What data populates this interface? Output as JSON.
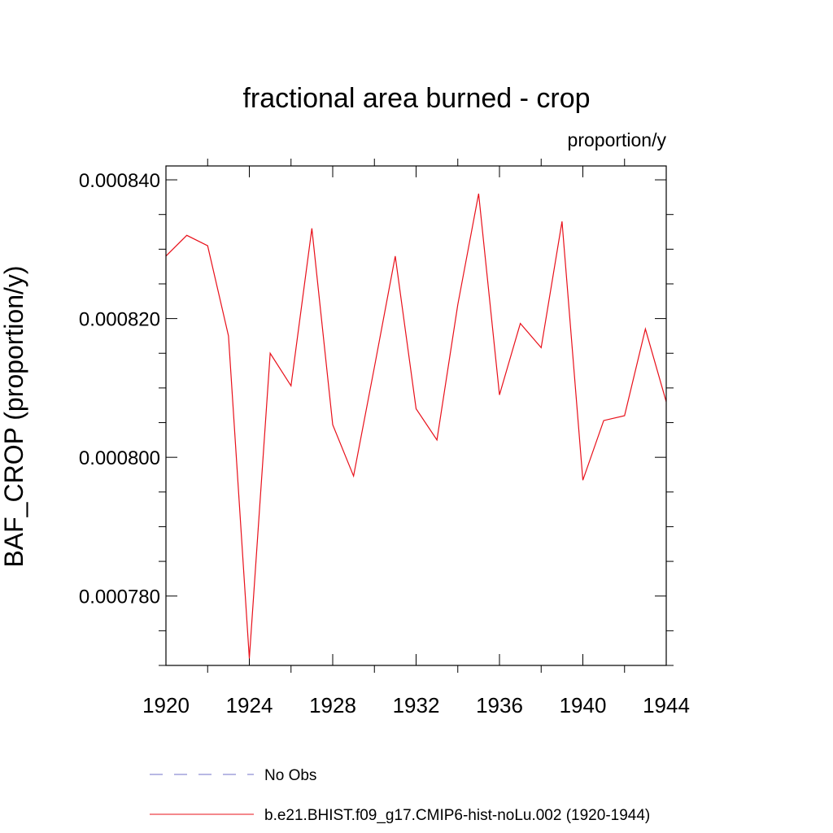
{
  "chart_data": {
    "type": "line",
    "title": "fractional area burned - crop",
    "units": "proportion/y",
    "xlabel": "",
    "ylabel": "BAF_CROP  (proportion/y)",
    "xlim": [
      1920,
      1944
    ],
    "ylim": [
      0.00077,
      0.000842
    ],
    "x_ticks": [
      1920,
      1924,
      1928,
      1932,
      1936,
      1940,
      1944
    ],
    "x_tick_labels": [
      "1920",
      "1924",
      "1928",
      "1932",
      "1936",
      "1940",
      "1944"
    ],
    "y_ticks": [
      0.00078,
      0.0008,
      0.00082,
      0.00084
    ],
    "y_tick_labels": [
      "0.000780",
      "0.000800",
      "0.000820",
      "0.000840"
    ],
    "series": [
      {
        "name": "No Obs",
        "color": "#7070c8",
        "style": "dashed",
        "x": [],
        "values": []
      },
      {
        "name": "b.e21.BHIST.f09_g17.CMIP6-hist-noLu.002 (1920-1944)",
        "color": "#e8101a",
        "style": "solid",
        "x": [
          1920,
          1921,
          1922,
          1923,
          1924,
          1925,
          1926,
          1927,
          1928,
          1929,
          1930,
          1931,
          1932,
          1933,
          1934,
          1935,
          1936,
          1937,
          1938,
          1939,
          1940,
          1941,
          1942,
          1943,
          1944
        ],
        "values": [
          0.000829,
          0.000832,
          0.0008305,
          0.0008175,
          0.000771,
          0.000815,
          0.0008103,
          0.000833,
          0.0008047,
          0.0007973,
          0.000813,
          0.000829,
          0.000807,
          0.0008025,
          0.000822,
          0.000838,
          0.000809,
          0.0008193,
          0.0008158,
          0.000834,
          0.0007967,
          0.0008053,
          0.000806,
          0.0008185,
          0.000808
        ]
      }
    ]
  }
}
